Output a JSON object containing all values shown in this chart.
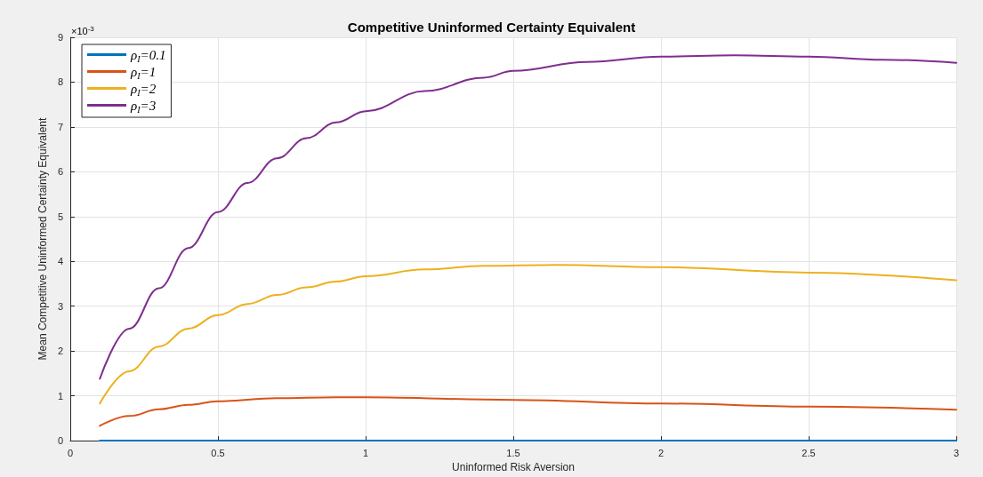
{
  "chart_data": {
    "type": "line",
    "title": "Competitive Uninformed Certainty Equivalent",
    "xlabel": "Uninformed Risk Aversion",
    "ylabel": "Mean Competitive Uninformed Certainty Equivalent",
    "annotations": [
      "×10$^{-3}$"
    ],
    "xlim": [
      0,
      3
    ],
    "xticks": [
      0,
      0.5,
      1,
      1.5,
      2,
      2.5,
      3
    ],
    "ylim": [
      0,
      9
    ],
    "yticks": [
      0,
      1,
      2,
      3,
      4,
      5,
      6,
      7,
      8,
      9
    ],
    "grid": true,
    "legend": "top left",
    "marker": "none",
    "line_style": "solid",
    "series": [
      {
        "name": "ρ$_{I}$=0.1",
        "color": "#0072bd",
        "x": [
          0.1,
          0.5,
          1,
          1.5,
          2,
          2.5,
          3
        ],
        "values": [
          0,
          0,
          0,
          0,
          0,
          0,
          0
        ]
      },
      {
        "name": "ρ$_{I}$=1",
        "color": "#d95319",
        "x": [
          0.1,
          0.2,
          0.3,
          0.4,
          0.5,
          0.7,
          0.9,
          1,
          1.5,
          2,
          2.5,
          3
        ],
        "values": [
          0.33,
          0.55,
          0.7,
          0.8,
          0.88,
          0.95,
          0.97,
          0.97,
          0.91,
          0.83,
          0.76,
          0.69
        ]
      },
      {
        "name": "ρ$_{I}$=2",
        "color": "#edb120",
        "x": [
          0.1,
          0.2,
          0.3,
          0.4,
          0.5,
          0.6,
          0.7,
          0.8,
          0.9,
          1,
          1.2,
          1.4,
          1.65,
          2,
          2.5,
          3
        ],
        "values": [
          0.83,
          1.55,
          2.1,
          2.5,
          2.8,
          3.05,
          3.25,
          3.42,
          3.55,
          3.67,
          3.82,
          3.9,
          3.92,
          3.87,
          3.75,
          3.58
        ]
      },
      {
        "name": "ρ$_{I}$=3",
        "color": "#7e2f8e",
        "x": [
          0.1,
          0.2,
          0.3,
          0.4,
          0.5,
          0.6,
          0.7,
          0.8,
          0.9,
          1,
          1.2,
          1.4,
          1.5,
          1.75,
          2,
          2.25,
          2.5,
          2.75,
          3
        ],
        "values": [
          1.38,
          2.5,
          3.4,
          4.3,
          5.1,
          5.75,
          6.3,
          6.75,
          7.1,
          7.35,
          7.8,
          8.1,
          8.25,
          8.45,
          8.57,
          8.6,
          8.57,
          8.5,
          8.43
        ]
      }
    ]
  }
}
